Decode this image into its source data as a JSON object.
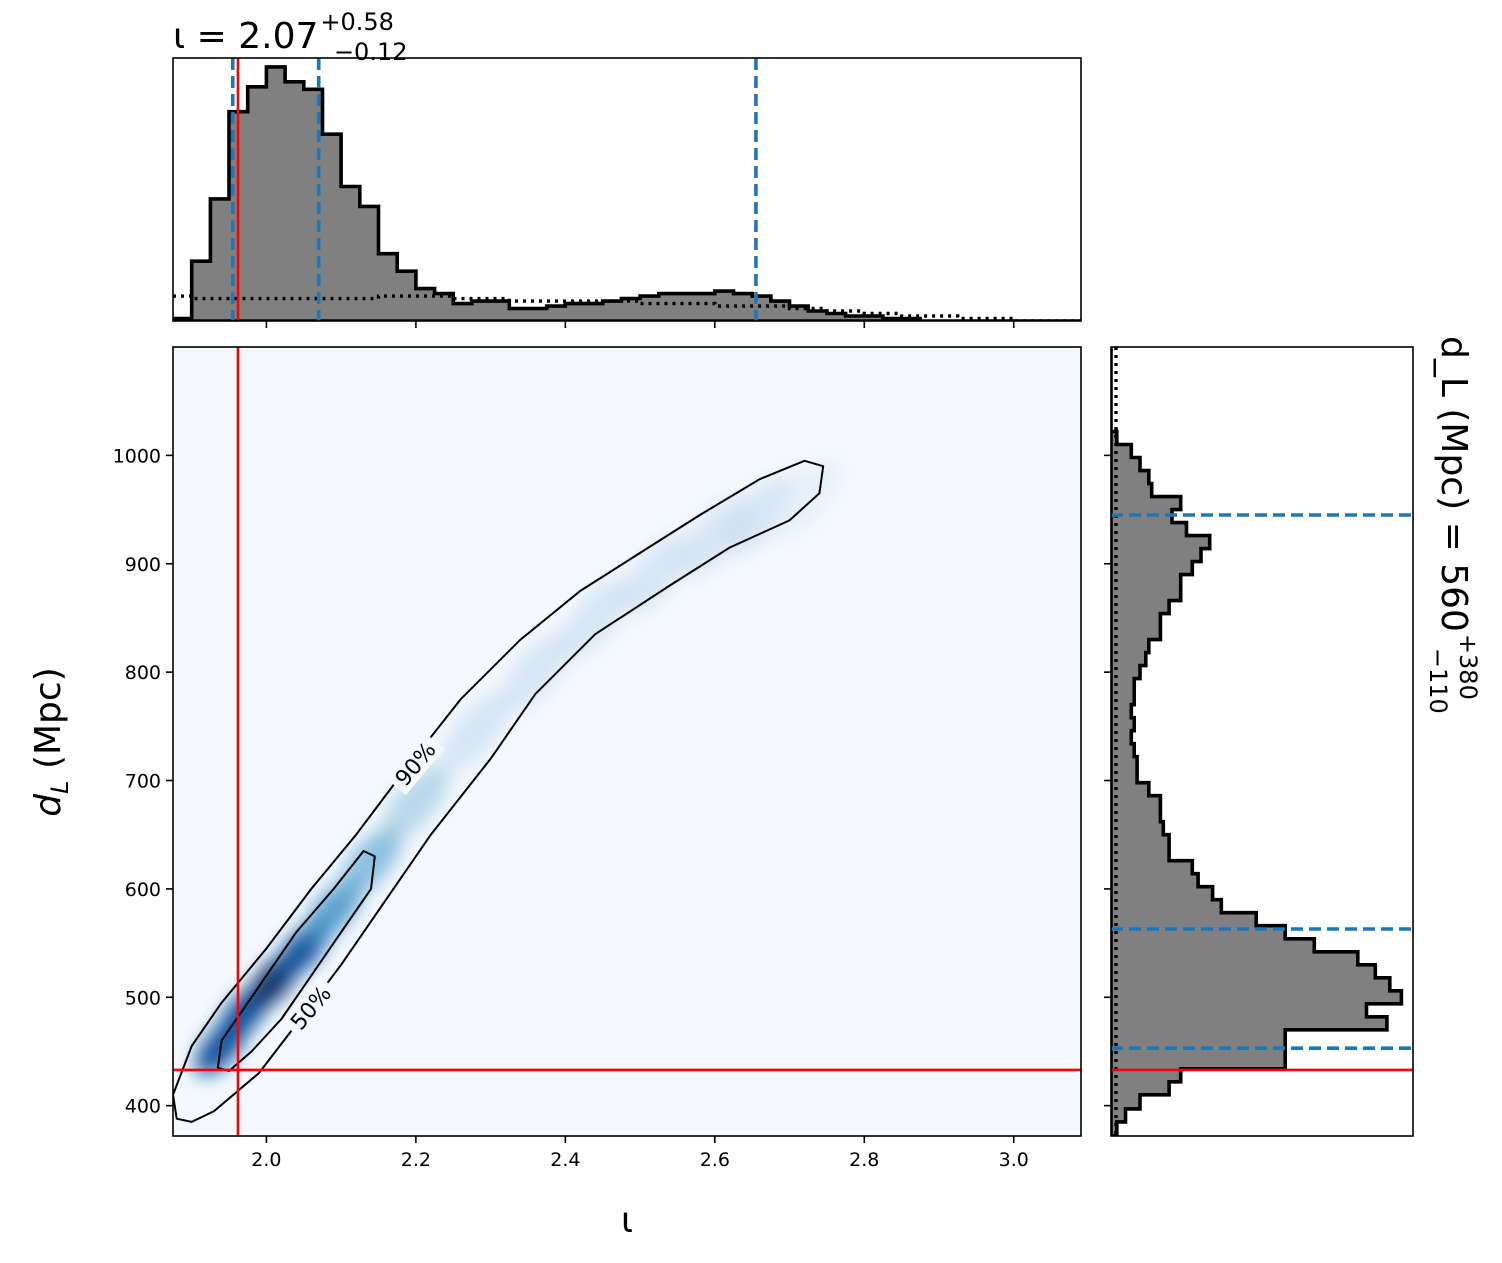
{
  "chart_data": [
    {
      "type": "heatmap",
      "panel": "joint",
      "xlabel": "ι",
      "ylabel": "d_L (Mpc)",
      "xlim": [
        1.875,
        3.09
      ],
      "ylim": [
        372,
        1100
      ],
      "xticks": [
        2.0,
        2.2,
        2.4,
        2.6,
        2.8,
        3.0
      ],
      "xtick_labels": [
        "2.0",
        "2.2",
        "2.4",
        "2.6",
        "2.8",
        "3.0"
      ],
      "yticks": [
        400,
        500,
        600,
        700,
        800,
        900,
        1000
      ],
      "ytick_labels": [
        "400",
        "500",
        "600",
        "700",
        "800",
        "900",
        "1000"
      ],
      "colormap": "Blues",
      "density_ridge": [
        {
          "x": 1.94,
          "y": 455,
          "w": 0.9
        },
        {
          "x": 1.97,
          "y": 485,
          "w": 0.95
        },
        {
          "x": 2.01,
          "y": 515,
          "w": 1.0
        },
        {
          "x": 2.05,
          "y": 545,
          "w": 0.9
        },
        {
          "x": 2.09,
          "y": 580,
          "w": 0.7
        },
        {
          "x": 2.14,
          "y": 625,
          "w": 0.5
        },
        {
          "x": 2.2,
          "y": 680,
          "w": 0.32
        },
        {
          "x": 2.28,
          "y": 745,
          "w": 0.22
        },
        {
          "x": 2.36,
          "y": 800,
          "w": 0.18
        },
        {
          "x": 2.44,
          "y": 850,
          "w": 0.17
        },
        {
          "x": 2.52,
          "y": 890,
          "w": 0.18
        },
        {
          "x": 2.6,
          "y": 925,
          "w": 0.2
        },
        {
          "x": 2.66,
          "y": 945,
          "w": 0.18
        },
        {
          "x": 2.72,
          "y": 960,
          "w": 0.12
        }
      ],
      "contour_90": [
        [
          1.875,
          410
        ],
        [
          1.9,
          455
        ],
        [
          1.94,
          495
        ],
        [
          2.0,
          545
        ],
        [
          2.06,
          600
        ],
        [
          2.12,
          650
        ],
        [
          2.18,
          705
        ],
        [
          2.26,
          775
        ],
        [
          2.34,
          830
        ],
        [
          2.42,
          875
        ],
        [
          2.5,
          910
        ],
        [
          2.58,
          945
        ],
        [
          2.66,
          978
        ],
        [
          2.72,
          995
        ],
        [
          2.745,
          990
        ],
        [
          2.74,
          965
        ],
        [
          2.7,
          940
        ],
        [
          2.62,
          915
        ],
        [
          2.54,
          880
        ],
        [
          2.44,
          835
        ],
        [
          2.36,
          780
        ],
        [
          2.3,
          720
        ],
        [
          2.22,
          650
        ],
        [
          2.16,
          590
        ],
        [
          2.1,
          530
        ],
        [
          2.04,
          475
        ],
        [
          1.99,
          430
        ],
        [
          1.93,
          395
        ],
        [
          1.9,
          385
        ],
        [
          1.88,
          388
        ]
      ],
      "contour_50": [
        [
          1.935,
          435
        ],
        [
          1.94,
          460
        ],
        [
          1.98,
          500
        ],
        [
          2.04,
          560
        ],
        [
          2.09,
          600
        ],
        [
          2.13,
          635
        ],
        [
          2.145,
          630
        ],
        [
          2.14,
          600
        ],
        [
          2.1,
          560
        ],
        [
          2.06,
          520
        ],
        [
          2.02,
          480
        ],
        [
          1.98,
          450
        ],
        [
          1.95,
          432
        ]
      ],
      "contour_labels": [
        {
          "text": "90%",
          "x": 2.2,
          "y": 715,
          "angle": -50
        },
        {
          "text": "50%",
          "x": 2.06,
          "y": 490,
          "angle": -50
        }
      ],
      "truth_x": 1.962,
      "truth_y": 433,
      "truth_color": "#ff0000"
    },
    {
      "type": "bar",
      "panel": "marginal-top",
      "title": "ι = 2.07",
      "title_superscript": "+0.58",
      "title_subscript": "−0.12",
      "xlim": [
        1.875,
        3.09
      ],
      "bin_edges": [
        1.875,
        1.9,
        1.925,
        1.95,
        1.975,
        2.0,
        2.025,
        2.05,
        2.075,
        2.1,
        2.125,
        2.15,
        2.175,
        2.2,
        2.225,
        2.25,
        2.275,
        2.3,
        2.325,
        2.35,
        2.375,
        2.4,
        2.425,
        2.45,
        2.475,
        2.5,
        2.525,
        2.55,
        2.575,
        2.6,
        2.625,
        2.65,
        2.675,
        2.7,
        2.725,
        2.75,
        2.775,
        2.8,
        2.825,
        2.85,
        2.875,
        2.9,
        2.925,
        2.95,
        2.975,
        3.0,
        3.025,
        3.05,
        3.09
      ],
      "counts": [
        0.01,
        0.24,
        0.49,
        0.84,
        0.94,
        1.02,
        0.96,
        0.93,
        0.75,
        0.54,
        0.46,
        0.27,
        0.2,
        0.13,
        0.11,
        0.07,
        0.08,
        0.08,
        0.05,
        0.05,
        0.06,
        0.07,
        0.07,
        0.08,
        0.09,
        0.1,
        0.11,
        0.11,
        0.11,
        0.12,
        0.11,
        0.1,
        0.08,
        0.06,
        0.04,
        0.03,
        0.02,
        0.02,
        0.01,
        0.01,
        0.0,
        0.0,
        0.0,
        0.0,
        0.0,
        0.0,
        0.0,
        0.0
      ],
      "prior_level": [
        0.1,
        0.09,
        0.09,
        0.09,
        0.09,
        0.09,
        0.09,
        0.09,
        0.09,
        0.09,
        0.09,
        0.1,
        0.1,
        0.1,
        0.1,
        0.09,
        0.09,
        0.09,
        0.08,
        0.08,
        0.08,
        0.08,
        0.08,
        0.08,
        0.08,
        0.07,
        0.07,
        0.07,
        0.07,
        0.06,
        0.06,
        0.06,
        0.06,
        0.05,
        0.05,
        0.04,
        0.04,
        0.03,
        0.03,
        0.02,
        0.02,
        0.02,
        0.01,
        0.01,
        0.01,
        0.0,
        0.0,
        0.0
      ],
      "quantile_lines": [
        1.955,
        2.07,
        2.655
      ],
      "quantile_color": "#1f77b4",
      "truth": 1.962
    },
    {
      "type": "bar",
      "panel": "marginal-right",
      "title": "d_L (Mpc) = 560",
      "title_superscript": "+380",
      "title_subscript": "−110",
      "ylim": [
        372,
        1100
      ],
      "bin_edges": [
        372,
        385,
        397,
        410,
        422,
        434,
        446,
        458,
        470,
        482,
        494,
        506,
        518,
        530,
        542,
        554,
        566,
        578,
        590,
        602,
        614,
        626,
        638,
        650,
        662,
        674,
        686,
        698,
        710,
        722,
        734,
        746,
        758,
        770,
        782,
        794,
        806,
        818,
        830,
        842,
        854,
        866,
        878,
        890,
        902,
        914,
        926,
        938,
        950,
        962,
        974,
        986,
        998,
        1010,
        1022,
        1034,
        1046,
        1058,
        1070,
        1082,
        1100
      ],
      "counts": [
        0.02,
        0.05,
        0.1,
        0.2,
        0.24,
        0.6,
        0.6,
        0.6,
        0.95,
        0.88,
        1.0,
        0.96,
        0.91,
        0.85,
        0.7,
        0.6,
        0.5,
        0.38,
        0.35,
        0.3,
        0.28,
        0.2,
        0.2,
        0.18,
        0.17,
        0.17,
        0.13,
        0.09,
        0.09,
        0.08,
        0.07,
        0.08,
        0.07,
        0.08,
        0.08,
        0.1,
        0.12,
        0.13,
        0.17,
        0.17,
        0.2,
        0.24,
        0.24,
        0.28,
        0.31,
        0.34,
        0.26,
        0.21,
        0.24,
        0.14,
        0.13,
        0.1,
        0.07,
        0.02,
        0.0,
        0.0,
        0.0,
        0.0,
        0.0,
        0.0
      ],
      "quantile_lines": [
        453,
        563,
        945
      ],
      "quantile_color": "#1f77b4",
      "truth": 433
    }
  ]
}
